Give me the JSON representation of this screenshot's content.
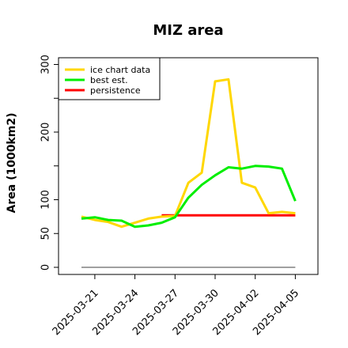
{
  "chart_data": {
    "type": "line",
    "title": "MIZ area",
    "xlabel": "",
    "ylabel": "Area (1000km2)",
    "xlim": [
      "2025-03-19",
      "2025-04-06"
    ],
    "ylim": [
      0,
      310
    ],
    "yticks": [
      0,
      50,
      100,
      200,
      300
    ],
    "yticks_minor": [
      150,
      250
    ],
    "xticks": [
      "2025-03-21",
      "2025-03-24",
      "2025-03-27",
      "2025-03-30",
      "2025-04-02",
      "2025-04-05"
    ],
    "grid": false,
    "legend": "top-left",
    "series": [
      {
        "name": "ice chart data",
        "color": "#FFD700",
        "x": [
          "2025-03-20",
          "2025-03-21",
          "2025-03-22",
          "2025-03-23",
          "2025-03-24",
          "2025-03-25",
          "2025-03-26",
          "2025-03-27",
          "2025-03-28",
          "2025-03-29",
          "2025-03-30",
          "2025-03-31",
          "2025-04-01",
          "2025-04-02",
          "2025-04-03",
          "2025-04-04",
          "2025-04-05"
        ],
        "y": [
          75,
          70,
          67,
          60,
          66,
          72,
          75,
          76,
          125,
          140,
          275,
          278,
          125,
          118,
          80,
          82,
          80
        ]
      },
      {
        "name": "best est.",
        "color": "#00EE00",
        "x": [
          "2025-03-20",
          "2025-03-21",
          "2025-03-22",
          "2025-03-23",
          "2025-03-24",
          "2025-03-25",
          "2025-03-26",
          "2025-03-27",
          "2025-03-28",
          "2025-03-29",
          "2025-03-30",
          "2025-03-31",
          "2025-04-01",
          "2025-04-02",
          "2025-04-03",
          "2025-04-04",
          "2025-04-05"
        ],
        "y": [
          72,
          74,
          70,
          69,
          60,
          62,
          66,
          74,
          103,
          122,
          136,
          148,
          146,
          150,
          149,
          146,
          98
        ]
      },
      {
        "name": "persistence",
        "color": "#FF0000",
        "x": [
          "2025-03-26",
          "2025-04-05"
        ],
        "y": [
          77,
          77
        ]
      },
      {
        "name": "",
        "color": "#808080",
        "x": [
          "2025-03-20",
          "2025-04-05"
        ],
        "y": [
          0,
          0
        ]
      }
    ]
  }
}
